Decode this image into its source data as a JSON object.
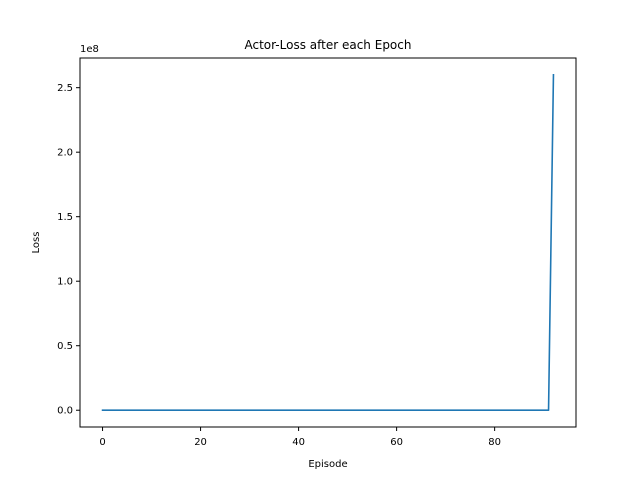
{
  "chart_data": {
    "type": "line",
    "title": "Actor-Loss after each Epoch",
    "xlabel": "Episode",
    "ylabel": "Loss",
    "y_offset_text": "1e8",
    "xlim": [
      -4.6,
      96.6
    ],
    "ylim": [
      -0.13,
      2.73
    ],
    "x_ticks": [
      0,
      20,
      40,
      60,
      80
    ],
    "x_tick_labels": [
      "0",
      "20",
      "40",
      "60",
      "80"
    ],
    "y_ticks": [
      0.0,
      0.5,
      1.0,
      1.5,
      2.0,
      2.5
    ],
    "y_tick_labels": [
      "0.0",
      "0.5",
      "1.0",
      "1.5",
      "2.0",
      "2.5"
    ],
    "grid": false,
    "series": [
      {
        "color": "#1f77b4",
        "x": [
          0,
          10,
          20,
          30,
          40,
          50,
          60,
          70,
          80,
          90,
          91,
          92
        ],
        "y": [
          0,
          0,
          0,
          0,
          0,
          0,
          0,
          0,
          0,
          0,
          0,
          2.6
        ]
      }
    ]
  }
}
